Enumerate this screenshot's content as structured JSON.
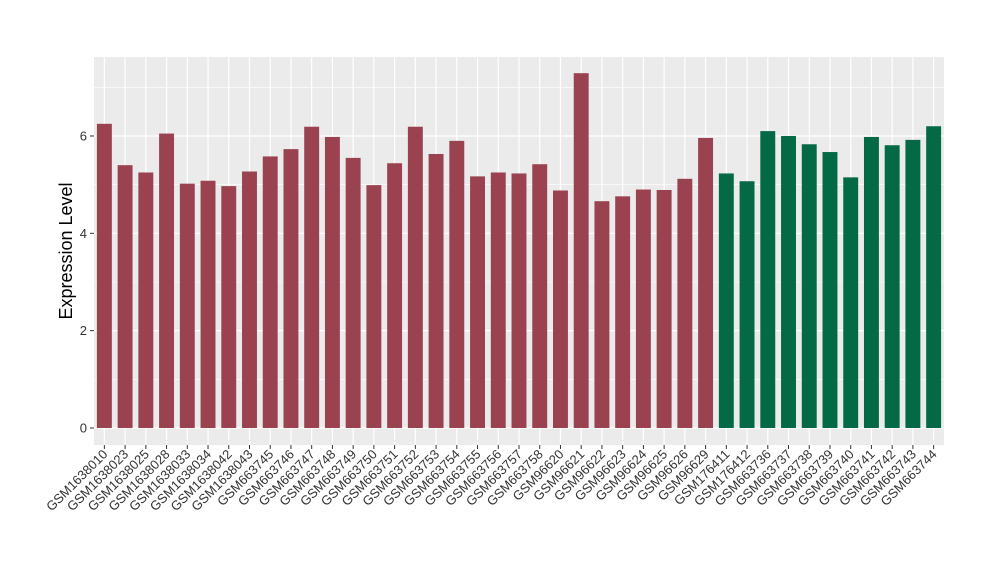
{
  "chart_data": {
    "type": "bar",
    "title": "",
    "xlabel": "",
    "ylabel": "Expression Level",
    "ylim": [
      0,
      7.5
    ],
    "yticks": [
      0,
      2,
      4,
      6
    ],
    "grid": true,
    "legend": "none",
    "colors": {
      "group1": "#9a4250",
      "group2": "#046a45",
      "panel": "#ebebeb",
      "grid": "#ffffff"
    },
    "categories": [
      "GSM1638010",
      "GSM1638023",
      "GSM1638025",
      "GSM1638028",
      "GSM1638033",
      "GSM1638034",
      "GSM1638042",
      "GSM1638043",
      "GSM663745",
      "GSM663746",
      "GSM663747",
      "GSM663748",
      "GSM663749",
      "GSM663750",
      "GSM663751",
      "GSM663752",
      "GSM663753",
      "GSM663754",
      "GSM663755",
      "GSM663756",
      "GSM663757",
      "GSM663758",
      "GSM96620",
      "GSM96621",
      "GSM96622",
      "GSM96623",
      "GSM96624",
      "GSM96625",
      "GSM96626",
      "GSM96629",
      "GSM176411",
      "GSM176412",
      "GSM663736",
      "GSM663737",
      "GSM663738",
      "GSM663739",
      "GSM663740",
      "GSM663741",
      "GSM663742",
      "GSM663743",
      "GSM663744"
    ],
    "values": [
      6.25,
      5.4,
      5.25,
      6.05,
      5.02,
      5.08,
      4.97,
      5.27,
      5.58,
      5.73,
      6.19,
      5.98,
      5.55,
      4.99,
      5.44,
      6.19,
      5.63,
      5.9,
      5.17,
      5.25,
      5.23,
      5.42,
      4.88,
      7.29,
      4.66,
      4.76,
      4.9,
      4.89,
      5.12,
      5.96,
      5.23,
      5.07,
      6.1,
      6.0,
      5.83,
      5.67,
      5.15,
      5.98,
      5.81,
      5.92,
      6.2
    ],
    "groups": [
      1,
      1,
      1,
      1,
      1,
      1,
      1,
      1,
      1,
      1,
      1,
      1,
      1,
      1,
      1,
      1,
      1,
      1,
      1,
      1,
      1,
      1,
      1,
      1,
      1,
      1,
      1,
      1,
      1,
      1,
      2,
      2,
      2,
      2,
      2,
      2,
      2,
      2,
      2,
      2,
      2
    ]
  }
}
